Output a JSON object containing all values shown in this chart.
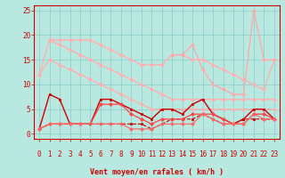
{
  "xlabel": "Vent moyen/en rafales ( km/h )",
  "xlim": [
    -0.5,
    23.5
  ],
  "ylim": [
    -1,
    26
  ],
  "yticks": [
    0,
    5,
    10,
    15,
    20,
    25
  ],
  "xticks": [
    0,
    1,
    2,
    3,
    4,
    5,
    6,
    7,
    8,
    9,
    10,
    11,
    12,
    13,
    14,
    15,
    16,
    17,
    18,
    19,
    20,
    21,
    22,
    23
  ],
  "bg_color": "#b8e8e0",
  "grid_color": "#88cccc",
  "title_color": "#cc0000",
  "series": [
    {
      "x": [
        0,
        1,
        2,
        3,
        4,
        5,
        6,
        7,
        8,
        9,
        10,
        11,
        12,
        13,
        14,
        15,
        16,
        17,
        18,
        19,
        20,
        21,
        22,
        23
      ],
      "y": [
        12,
        19,
        19,
        19,
        19,
        19,
        18,
        17,
        16,
        15,
        14,
        14,
        14,
        16,
        16,
        15,
        15,
        14,
        13,
        12,
        11,
        10,
        9,
        15
      ],
      "color": "#ffb0b0",
      "marker": "D",
      "markersize": 2,
      "linewidth": 1.0,
      "linestyle": "-",
      "connect_all": true
    },
    {
      "x": [
        1,
        2,
        3,
        4,
        5,
        6,
        7,
        8,
        9,
        10,
        11,
        12,
        13,
        14,
        15,
        16,
        17,
        18,
        19,
        20,
        21,
        22,
        23
      ],
      "y": [
        19,
        18,
        17,
        16,
        15,
        14,
        13,
        12,
        11,
        10,
        9,
        8,
        7,
        7,
        7,
        7,
        7,
        7,
        7,
        7,
        7,
        7,
        7
      ],
      "color": "#ffb0b0",
      "marker": "D",
      "markersize": 2,
      "linewidth": 1.0,
      "linestyle": "-",
      "connect_all": true
    },
    {
      "x": [
        0,
        1,
        2,
        3,
        4,
        5,
        6,
        7,
        8,
        9,
        10,
        11,
        12,
        13,
        14,
        15,
        16,
        17,
        18,
        19,
        20,
        21,
        22,
        23
      ],
      "y": [
        12,
        15,
        14,
        13,
        12,
        11,
        10,
        9,
        8,
        7,
        6,
        5,
        5,
        5,
        5,
        5,
        5,
        5,
        5,
        5,
        5,
        5,
        5,
        5
      ],
      "color": "#ffb0b0",
      "marker": "D",
      "markersize": 2,
      "linewidth": 1.0,
      "linestyle": "-",
      "connect_all": true
    },
    {
      "x": [
        13,
        14,
        15,
        16,
        17,
        18,
        19,
        20,
        21,
        22,
        23
      ],
      "y": [
        16,
        16,
        18,
        13,
        10,
        9,
        8,
        8,
        25,
        15,
        15
      ],
      "color": "#ffaaaa",
      "marker": "D",
      "markersize": 2,
      "linewidth": 1.0,
      "linestyle": "-",
      "connect_all": true
    },
    {
      "x": [
        0,
        1,
        2,
        3,
        4,
        5,
        6,
        7,
        8,
        9,
        10,
        11,
        12,
        13,
        14,
        15,
        16,
        17,
        18,
        19,
        20,
        21,
        22,
        23
      ],
      "y": [
        1,
        8,
        7,
        2,
        2,
        2,
        7,
        7,
        6,
        5,
        4,
        3,
        5,
        5,
        4,
        6,
        7,
        4,
        3,
        2,
        3,
        5,
        5,
        3
      ],
      "color": "#cc0000",
      "marker": "s",
      "markersize": 2,
      "linewidth": 1.0,
      "linestyle": "-",
      "connect_all": true
    },
    {
      "x": [
        0,
        1,
        2,
        3,
        4,
        5,
        6,
        7,
        8,
        9,
        10,
        11,
        12,
        13,
        14,
        15,
        16,
        17,
        18,
        19,
        20,
        21,
        22,
        23
      ],
      "y": [
        1,
        2,
        2,
        2,
        2,
        2,
        2,
        2,
        2,
        2,
        2,
        1,
        2,
        3,
        3,
        3,
        4,
        3,
        2,
        2,
        3,
        3,
        3,
        3
      ],
      "color": "#cc0000",
      "marker": "s",
      "markersize": 2,
      "linewidth": 0.8,
      "linestyle": "--",
      "connect_all": true
    },
    {
      "x": [
        0,
        1,
        2,
        3,
        4,
        5,
        6,
        7,
        8,
        9,
        10,
        11,
        12,
        13,
        14,
        15,
        16,
        17,
        18,
        19,
        20,
        21,
        22,
        23
      ],
      "y": [
        1,
        2,
        2,
        2,
        2,
        2,
        6,
        6,
        6,
        4,
        3,
        2,
        3,
        3,
        3,
        4,
        4,
        4,
        3,
        2,
        2,
        4,
        4,
        3
      ],
      "color": "#ff4444",
      "marker": "D",
      "markersize": 2,
      "linewidth": 0.9,
      "linestyle": "-",
      "connect_all": true
    },
    {
      "x": [
        0,
        1,
        2,
        3,
        4,
        5,
        6,
        7,
        8,
        9,
        10,
        11,
        12,
        13,
        14,
        15,
        16,
        17,
        18,
        19,
        20,
        21,
        22,
        23
      ],
      "y": [
        1,
        2,
        2,
        2,
        2,
        2,
        2,
        2,
        2,
        1,
        1,
        1,
        2,
        2,
        2,
        2,
        4,
        3,
        2,
        2,
        2,
        4,
        3,
        3
      ],
      "color": "#ff6666",
      "marker": "D",
      "markersize": 2,
      "linewidth": 0.8,
      "linestyle": "-",
      "connect_all": true
    }
  ],
  "arrows": {
    "x": [
      0,
      1,
      2,
      3,
      4,
      5,
      6,
      7,
      8,
      9,
      10,
      11,
      12,
      13,
      14,
      15,
      16,
      17,
      18,
      19,
      20,
      21,
      22,
      23
    ],
    "styles": [
      "down",
      "down",
      "down",
      "down",
      "diag",
      "down",
      "down",
      "down",
      "down",
      "down",
      "down",
      "down",
      "down",
      "down",
      "down",
      "diag",
      "down",
      "down",
      "diag",
      "back",
      "down",
      "diag",
      "diag",
      "diag"
    ]
  }
}
